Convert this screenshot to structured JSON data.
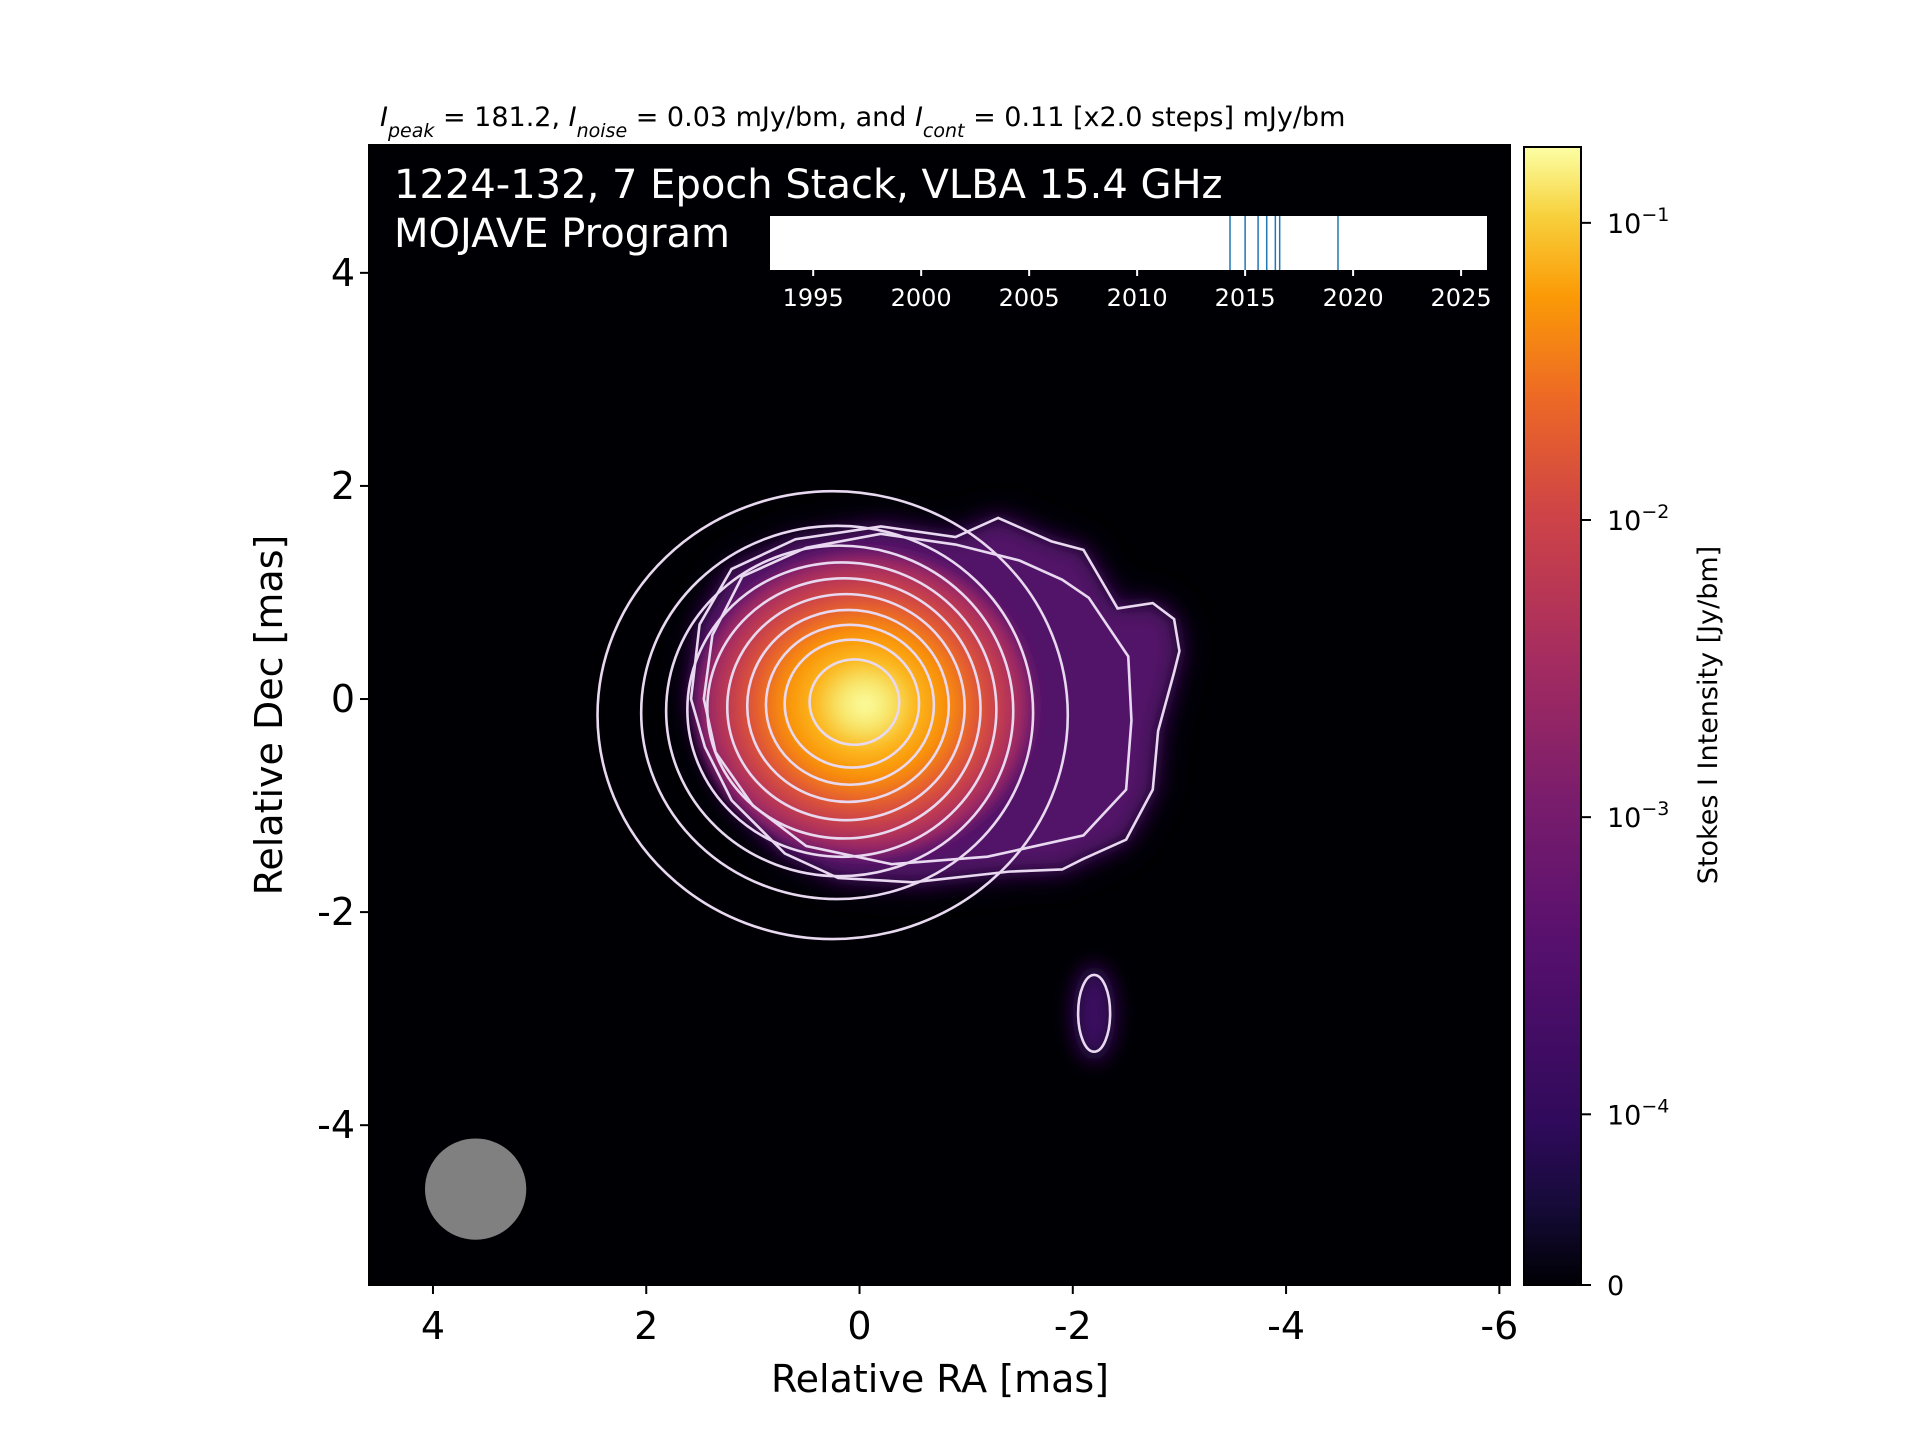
{
  "colors": {
    "background": "#ffffff",
    "image_background": "#000004",
    "contour": "#e8d9f0",
    "beam": "#808080",
    "epoch_line": "#1f77b4",
    "annotation_text": "#ffffff",
    "colormap": [
      "#000004",
      "#1b0c41",
      "#4a0c6b",
      "#781c6d",
      "#a52c60",
      "#cf4446",
      "#ed6925",
      "#fb9b06",
      "#f7d13d",
      "#fcffa4"
    ]
  },
  "chart_data": [
    {
      "type": "heatmap",
      "title_parts": [
        {
          "text": "I",
          "style": "italic"
        },
        {
          "text": "peak",
          "style": "sub"
        },
        {
          "text": " = 181.2, "
        },
        {
          "text": "I",
          "style": "italic"
        },
        {
          "text": "noise",
          "style": "sub"
        },
        {
          "text": " = 0.03 mJy/bm, and "
        },
        {
          "text": "I",
          "style": "italic"
        },
        {
          "text": "cont",
          "style": "sub"
        },
        {
          "text": " = 0.11 [x2.0 steps] mJy/bm"
        }
      ],
      "annotation_lines": [
        "1224-132, 7 Epoch Stack, VLBA 15.4 GHz",
        "MOJAVE Program"
      ],
      "xlabel": "Relative RA [mas]",
      "ylabel": "Relative Dec [mas]",
      "xlim": [
        4.6,
        -6.1
      ],
      "ylim": [
        -5.5,
        5.2
      ],
      "xticks": [
        4,
        2,
        0,
        -2,
        -4,
        -6
      ],
      "xtick_labels": [
        "4",
        "2",
        "0",
        "-2",
        "-4",
        "-6"
      ],
      "yticks": [
        4,
        2,
        0,
        -2,
        -4
      ],
      "ytick_labels": [
        "4",
        "2",
        "0",
        "-2",
        "-4"
      ],
      "peak_position": [
        0,
        0
      ],
      "contour_levels_mJy_per_beam": [
        0.11,
        0.22,
        0.44,
        0.88,
        1.76,
        3.52,
        7.04,
        14.08,
        28.16,
        56.32,
        112.64
      ],
      "contour_radii_mas": [
        2.1,
        1.75,
        1.55,
        1.38,
        1.22,
        1.06,
        0.9,
        0.75,
        0.6,
        0.4
      ],
      "outer_contour_outline_mas": [
        [
          -2.42,
          0.85
        ],
        [
          -2.1,
          1.4
        ],
        [
          -1.8,
          1.48
        ],
        [
          -1.3,
          1.7
        ],
        [
          -0.9,
          1.52
        ],
        [
          -0.2,
          1.62
        ],
        [
          0.6,
          1.5
        ],
        [
          1.2,
          1.22
        ],
        [
          1.5,
          0.7
        ],
        [
          1.58,
          0.0
        ],
        [
          1.45,
          -0.45
        ],
        [
          1.2,
          -0.95
        ],
        [
          0.7,
          -1.45
        ],
        [
          0.2,
          -1.68
        ],
        [
          -0.5,
          -1.72
        ],
        [
          -1.4,
          -1.62
        ],
        [
          -1.9,
          -1.6
        ],
        [
          -2.1,
          -1.5
        ],
        [
          -2.5,
          -1.32
        ],
        [
          -2.75,
          -0.85
        ],
        [
          -2.8,
          -0.3
        ],
        [
          -2.95,
          0.25
        ],
        [
          -3.0,
          0.45
        ],
        [
          -2.95,
          0.75
        ],
        [
          -2.75,
          0.9
        ]
      ],
      "secondary_contour_outline_mas": [
        [
          -2.15,
          0.95
        ],
        [
          -1.9,
          1.12
        ],
        [
          -1.5,
          1.3
        ],
        [
          -0.9,
          1.45
        ],
        [
          -0.2,
          1.55
        ],
        [
          0.5,
          1.42
        ],
        [
          1.1,
          1.15
        ],
        [
          1.38,
          0.6
        ],
        [
          1.46,
          0.0
        ],
        [
          1.35,
          -0.5
        ],
        [
          1.0,
          -1.0
        ],
        [
          0.5,
          -1.38
        ],
        [
          -0.3,
          -1.55
        ],
        [
          -1.2,
          -1.48
        ],
        [
          -2.1,
          -1.28
        ],
        [
          -2.5,
          -0.85
        ],
        [
          -2.55,
          -0.2
        ],
        [
          -2.52,
          0.4
        ]
      ],
      "isolated_contour": {
        "center": [
          -2.2,
          -2.95
        ],
        "rx": 0.15,
        "ry": 0.36
      },
      "beam": {
        "center": [
          3.6,
          -4.6
        ],
        "diameter_mas": 0.95
      },
      "jet_extension_direction": "west"
    },
    {
      "type": "colorbar",
      "label": "Stokes I Intensity [Jy/bm]",
      "scale": "symlog",
      "range": [
        0,
        0.18
      ],
      "ticks": [
        0,
        0.0001,
        0.001,
        0.01,
        0.1
      ],
      "tick_labels": [
        {
          "base": "0",
          "exp": ""
        },
        {
          "base": "10",
          "exp": "−4"
        },
        {
          "base": "10",
          "exp": "−3"
        },
        {
          "base": "10",
          "exp": "−2"
        },
        {
          "base": "10",
          "exp": "−1"
        }
      ]
    },
    {
      "type": "timeline",
      "xlim": [
        1993,
        2026.2
      ],
      "ticks": [
        1995,
        2000,
        2005,
        2010,
        2015,
        2020,
        2025
      ],
      "tick_labels": [
        "1995",
        "2000",
        "2005",
        "2010",
        "2015",
        "2020",
        "2025"
      ],
      "epochs": [
        2014.3,
        2015.0,
        2015.6,
        2016.0,
        2016.4,
        2016.6,
        2019.3
      ]
    }
  ]
}
